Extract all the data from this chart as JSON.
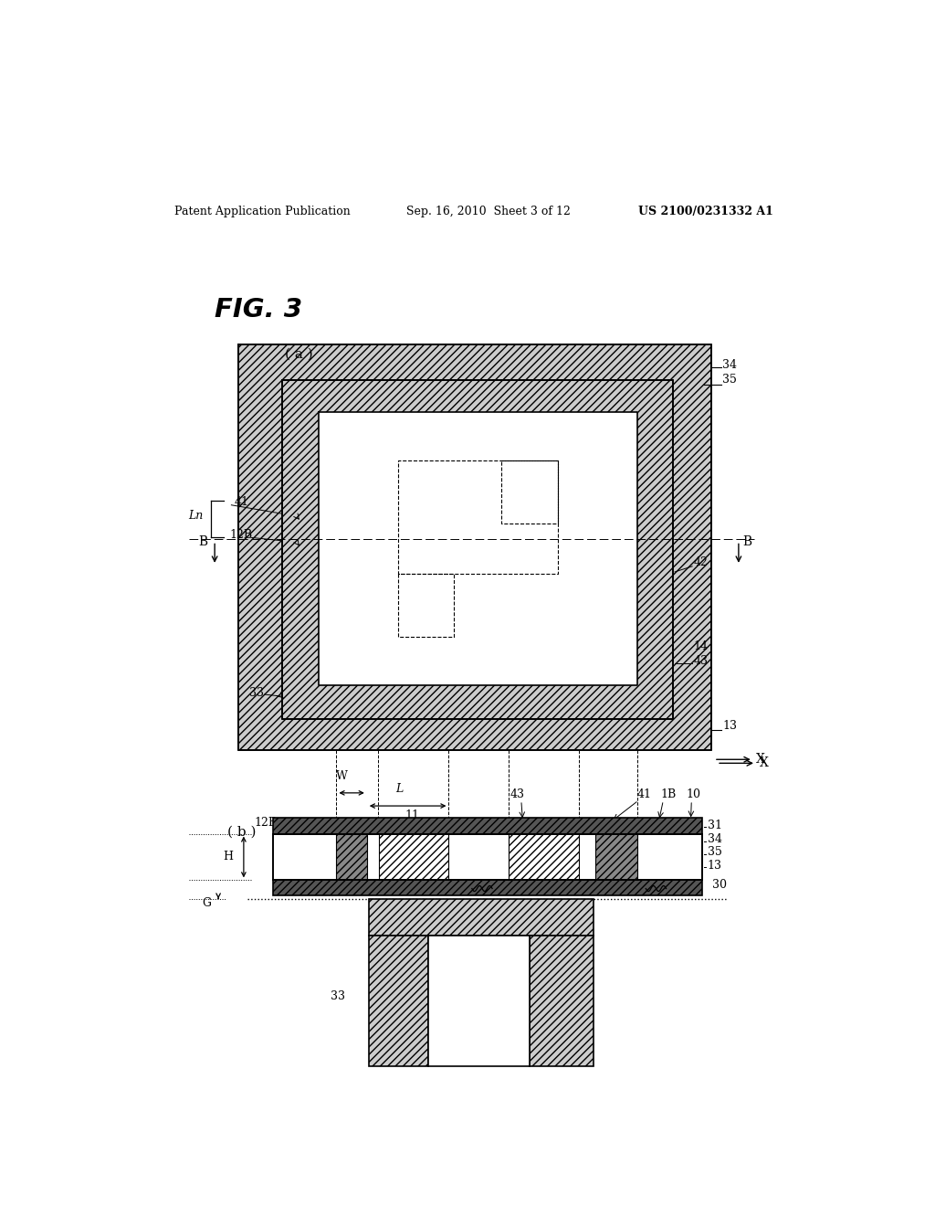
{
  "bg_color": "#ffffff",
  "header_left": "Patent Application Publication",
  "header_mid": "Sep. 16, 2010  Sheet 3 of 12",
  "header_right": "US 2100/0231332 A1",
  "fig_label": "FIG. 3"
}
